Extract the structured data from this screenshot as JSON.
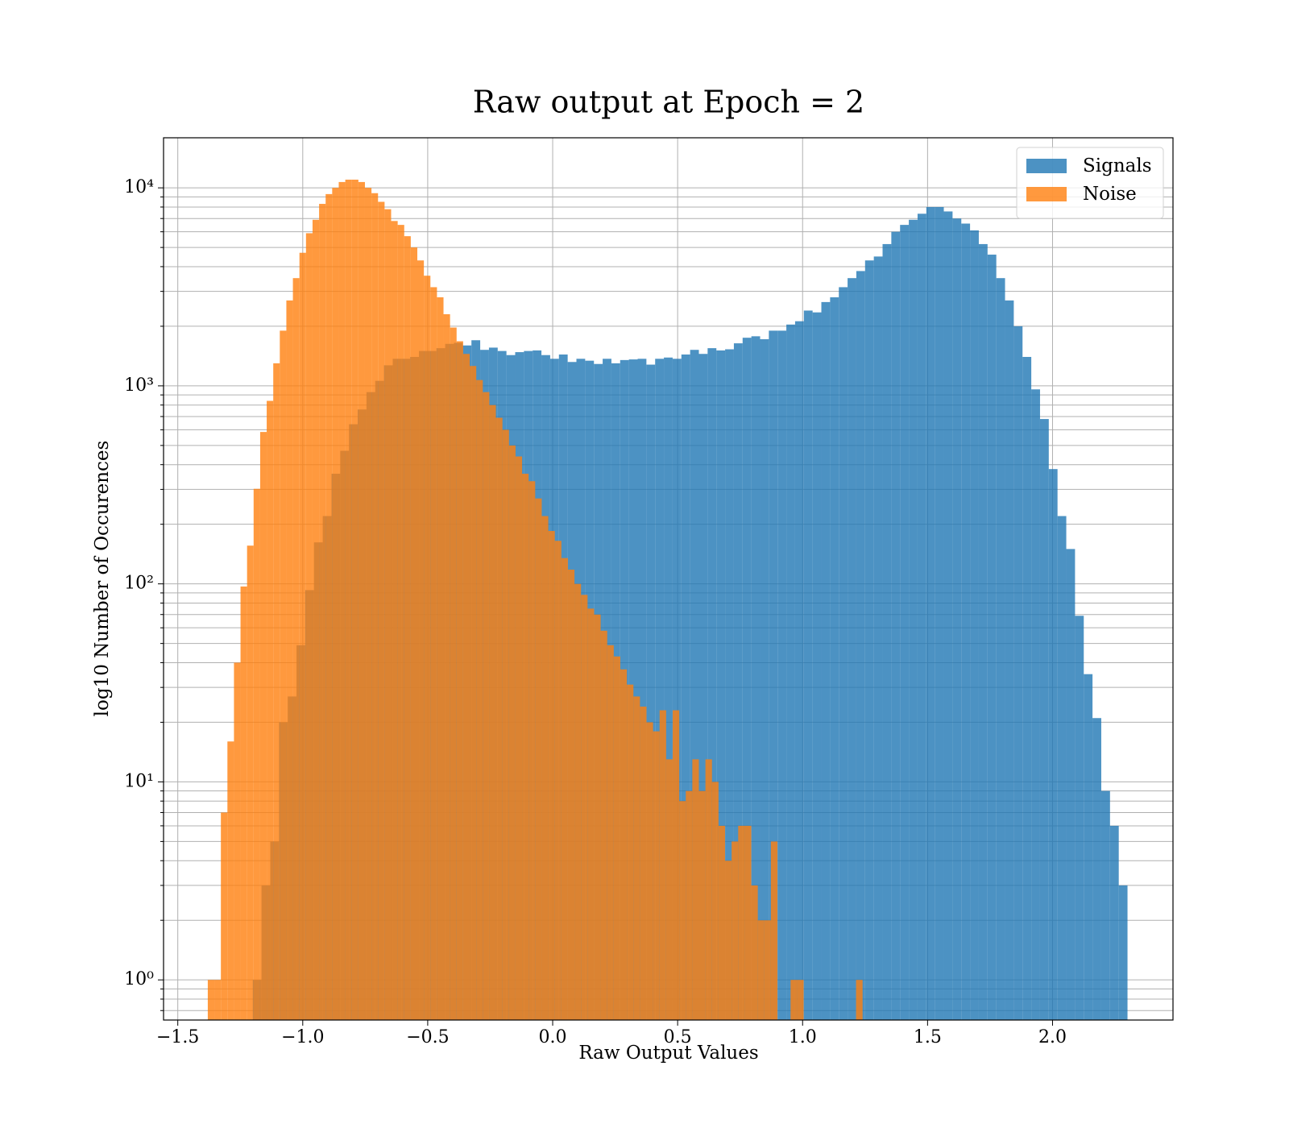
{
  "chart_data": {
    "type": "histogram",
    "title": "Raw output at Epoch = 2",
    "x_label": "Raw Output Values",
    "y_label": "log10 Number of Occurences",
    "log_y": true,
    "grid": true,
    "legend": "upper right",
    "xlim": [
      -1.557,
      2.482
    ],
    "ylim": [
      0.627,
      17900
    ],
    "xticks": [
      {
        "value": -1.5,
        "label": "−1.5"
      },
      {
        "value": -1.0,
        "label": "−1.0"
      },
      {
        "value": -0.5,
        "label": "−0.5"
      },
      {
        "value": 0.0,
        "label": "0.0"
      },
      0.5,
      {
        "value": 1.0,
        "label": "1.0"
      },
      1.5,
      {
        "value": 2.0,
        "label": "2.0"
      }
    ],
    "yticks": [
      {
        "value": 1,
        "label": "10⁰"
      },
      {
        "value": 10,
        "label": "10¹"
      },
      {
        "value": 100,
        "label": "10²"
      },
      {
        "value": 1000,
        "label": "10³"
      },
      {
        "value": 10000,
        "label": "10⁴"
      }
    ],
    "yminorticks": [
      0.7,
      0.8,
      0.9,
      2,
      3,
      4,
      5,
      6,
      7,
      8,
      9,
      20,
      30,
      40,
      50,
      60,
      70,
      80,
      90,
      200,
      300,
      400,
      500,
      600,
      700,
      800,
      900,
      2000,
      3000,
      4000,
      5000,
      6000,
      7000,
      8000,
      9000
    ],
    "series": [
      {
        "name": "Signals",
        "color": "#1f77b4",
        "opacity": 0.8,
        "bins": [
          -1.2,
          -1.165,
          -1.13,
          -1.095,
          -1.06,
          -1.025,
          -0.99,
          -0.955,
          -0.92,
          -0.885,
          -0.85,
          -0.815,
          -0.78,
          -0.745,
          -0.71,
          -0.675,
          -0.64,
          -0.605,
          -0.57,
          -0.535,
          -0.5,
          -0.465,
          -0.43,
          -0.395,
          -0.36,
          -0.325,
          -0.29,
          -0.255,
          -0.22,
          -0.185,
          -0.15,
          -0.115,
          -0.08,
          -0.045,
          -0.01,
          0.025,
          0.06,
          0.095,
          0.13,
          0.165,
          0.2,
          0.235,
          0.27,
          0.305,
          0.34,
          0.375,
          0.41,
          0.445,
          0.48,
          0.515,
          0.55,
          0.585,
          0.62,
          0.655,
          0.69,
          0.725,
          0.76,
          0.795,
          0.83,
          0.865,
          0.9,
          0.935,
          0.97,
          1.005,
          1.04,
          1.075,
          1.11,
          1.145,
          1.18,
          1.215,
          1.25,
          1.285,
          1.32,
          1.355,
          1.39,
          1.425,
          1.46,
          1.495,
          1.53,
          1.565,
          1.6,
          1.635,
          1.67,
          1.705,
          1.74,
          1.775,
          1.81,
          1.845,
          1.88,
          1.915,
          1.95,
          1.985,
          2.02,
          2.055,
          2.09,
          2.125,
          2.16,
          2.195,
          2.23,
          2.265,
          2.3
        ],
        "values": [
          1,
          3,
          5,
          20,
          27,
          49,
          93,
          162,
          220,
          360,
          470,
          640,
          760,
          930,
          1060,
          1270,
          1370,
          1370,
          1400,
          1500,
          1500,
          1550,
          1630,
          1650,
          1600,
          1700,
          1520,
          1560,
          1500,
          1430,
          1480,
          1500,
          1510,
          1430,
          1370,
          1440,
          1320,
          1370,
          1340,
          1290,
          1370,
          1300,
          1350,
          1360,
          1370,
          1280,
          1370,
          1390,
          1370,
          1440,
          1520,
          1450,
          1550,
          1510,
          1530,
          1640,
          1750,
          1780,
          1720,
          1900,
          1900,
          2040,
          2120,
          2400,
          2350,
          2650,
          2800,
          3150,
          3500,
          3800,
          4300,
          4500,
          5200,
          6000,
          6500,
          6900,
          7400,
          8000,
          8000,
          7600,
          7000,
          6600,
          6100,
          5200,
          4600,
          3500,
          2700,
          2000,
          1400,
          960,
          680,
          380,
          220,
          150,
          69,
          35,
          21,
          9,
          6,
          3
        ]
      },
      {
        "name": "Noise",
        "color": "#ff7f0e",
        "opacity": 0.8,
        "bins": [
          -1.38,
          -1.3538,
          -1.3276,
          -1.3014,
          -1.2752,
          -1.249,
          -1.2228,
          -1.1966,
          -1.1704,
          -1.1442,
          -1.118,
          -1.0918,
          -1.0656,
          -1.0394,
          -1.0132,
          -0.987,
          -0.9608,
          -0.9346,
          -0.9084,
          -0.8822,
          -0.856,
          -0.8298,
          -0.8036,
          -0.7774,
          -0.7512,
          -0.725,
          -0.6988,
          -0.6726,
          -0.6464,
          -0.6202,
          -0.594,
          -0.5678,
          -0.5416,
          -0.5154,
          -0.4892,
          -0.463,
          -0.4368,
          -0.4106,
          -0.3844,
          -0.3582,
          -0.332,
          -0.3058,
          -0.2796,
          -0.2534,
          -0.2272,
          -0.201,
          -0.1748,
          -0.1486,
          -0.1224,
          -0.0962,
          -0.07,
          -0.0438,
          -0.0176,
          0.0086,
          0.0348,
          0.061,
          0.0872,
          0.1134,
          0.1396,
          0.1658,
          0.192,
          0.2182,
          0.2444,
          0.2706,
          0.2968,
          0.323,
          0.3492,
          0.3754,
          0.4016,
          0.4278,
          0.454,
          0.4802,
          0.5064,
          0.5326,
          0.5588,
          0.585,
          0.6112,
          0.6374,
          0.6636,
          0.6898,
          0.716,
          0.7422,
          0.7684,
          0.7946,
          0.8208,
          0.847,
          0.8732,
          0.8994,
          0.9256,
          0.9518,
          0.978,
          1.0042,
          1.0304,
          1.0566,
          1.0828,
          1.109,
          1.1352,
          1.1614,
          1.1876,
          1.2138,
          1.24
        ],
        "values": [
          1,
          1,
          7,
          16,
          40,
          97,
          156,
          302,
          585,
          840,
          1300,
          1900,
          2700,
          3500,
          4700,
          5900,
          6900,
          8300,
          9300,
          10000,
          10700,
          11000,
          11000,
          10700,
          10000,
          9400,
          8500,
          7800,
          6800,
          6500,
          5700,
          5000,
          4300,
          3600,
          3150,
          2800,
          2300,
          1970,
          1680,
          1450,
          1260,
          1070,
          930,
          800,
          690,
          600,
          500,
          440,
          360,
          330,
          270,
          220,
          185,
          165,
          135,
          118,
          100,
          88,
          75,
          70,
          58,
          49,
          43,
          37,
          31,
          27,
          24,
          20,
          18,
          23,
          13,
          23,
          8,
          9,
          13,
          9,
          13,
          10,
          6,
          4,
          5,
          6,
          6,
          3,
          2,
          2,
          5,
          0,
          0,
          1,
          1,
          0,
          0,
          0,
          0,
          0,
          0,
          0,
          0,
          1
        ]
      }
    ]
  }
}
